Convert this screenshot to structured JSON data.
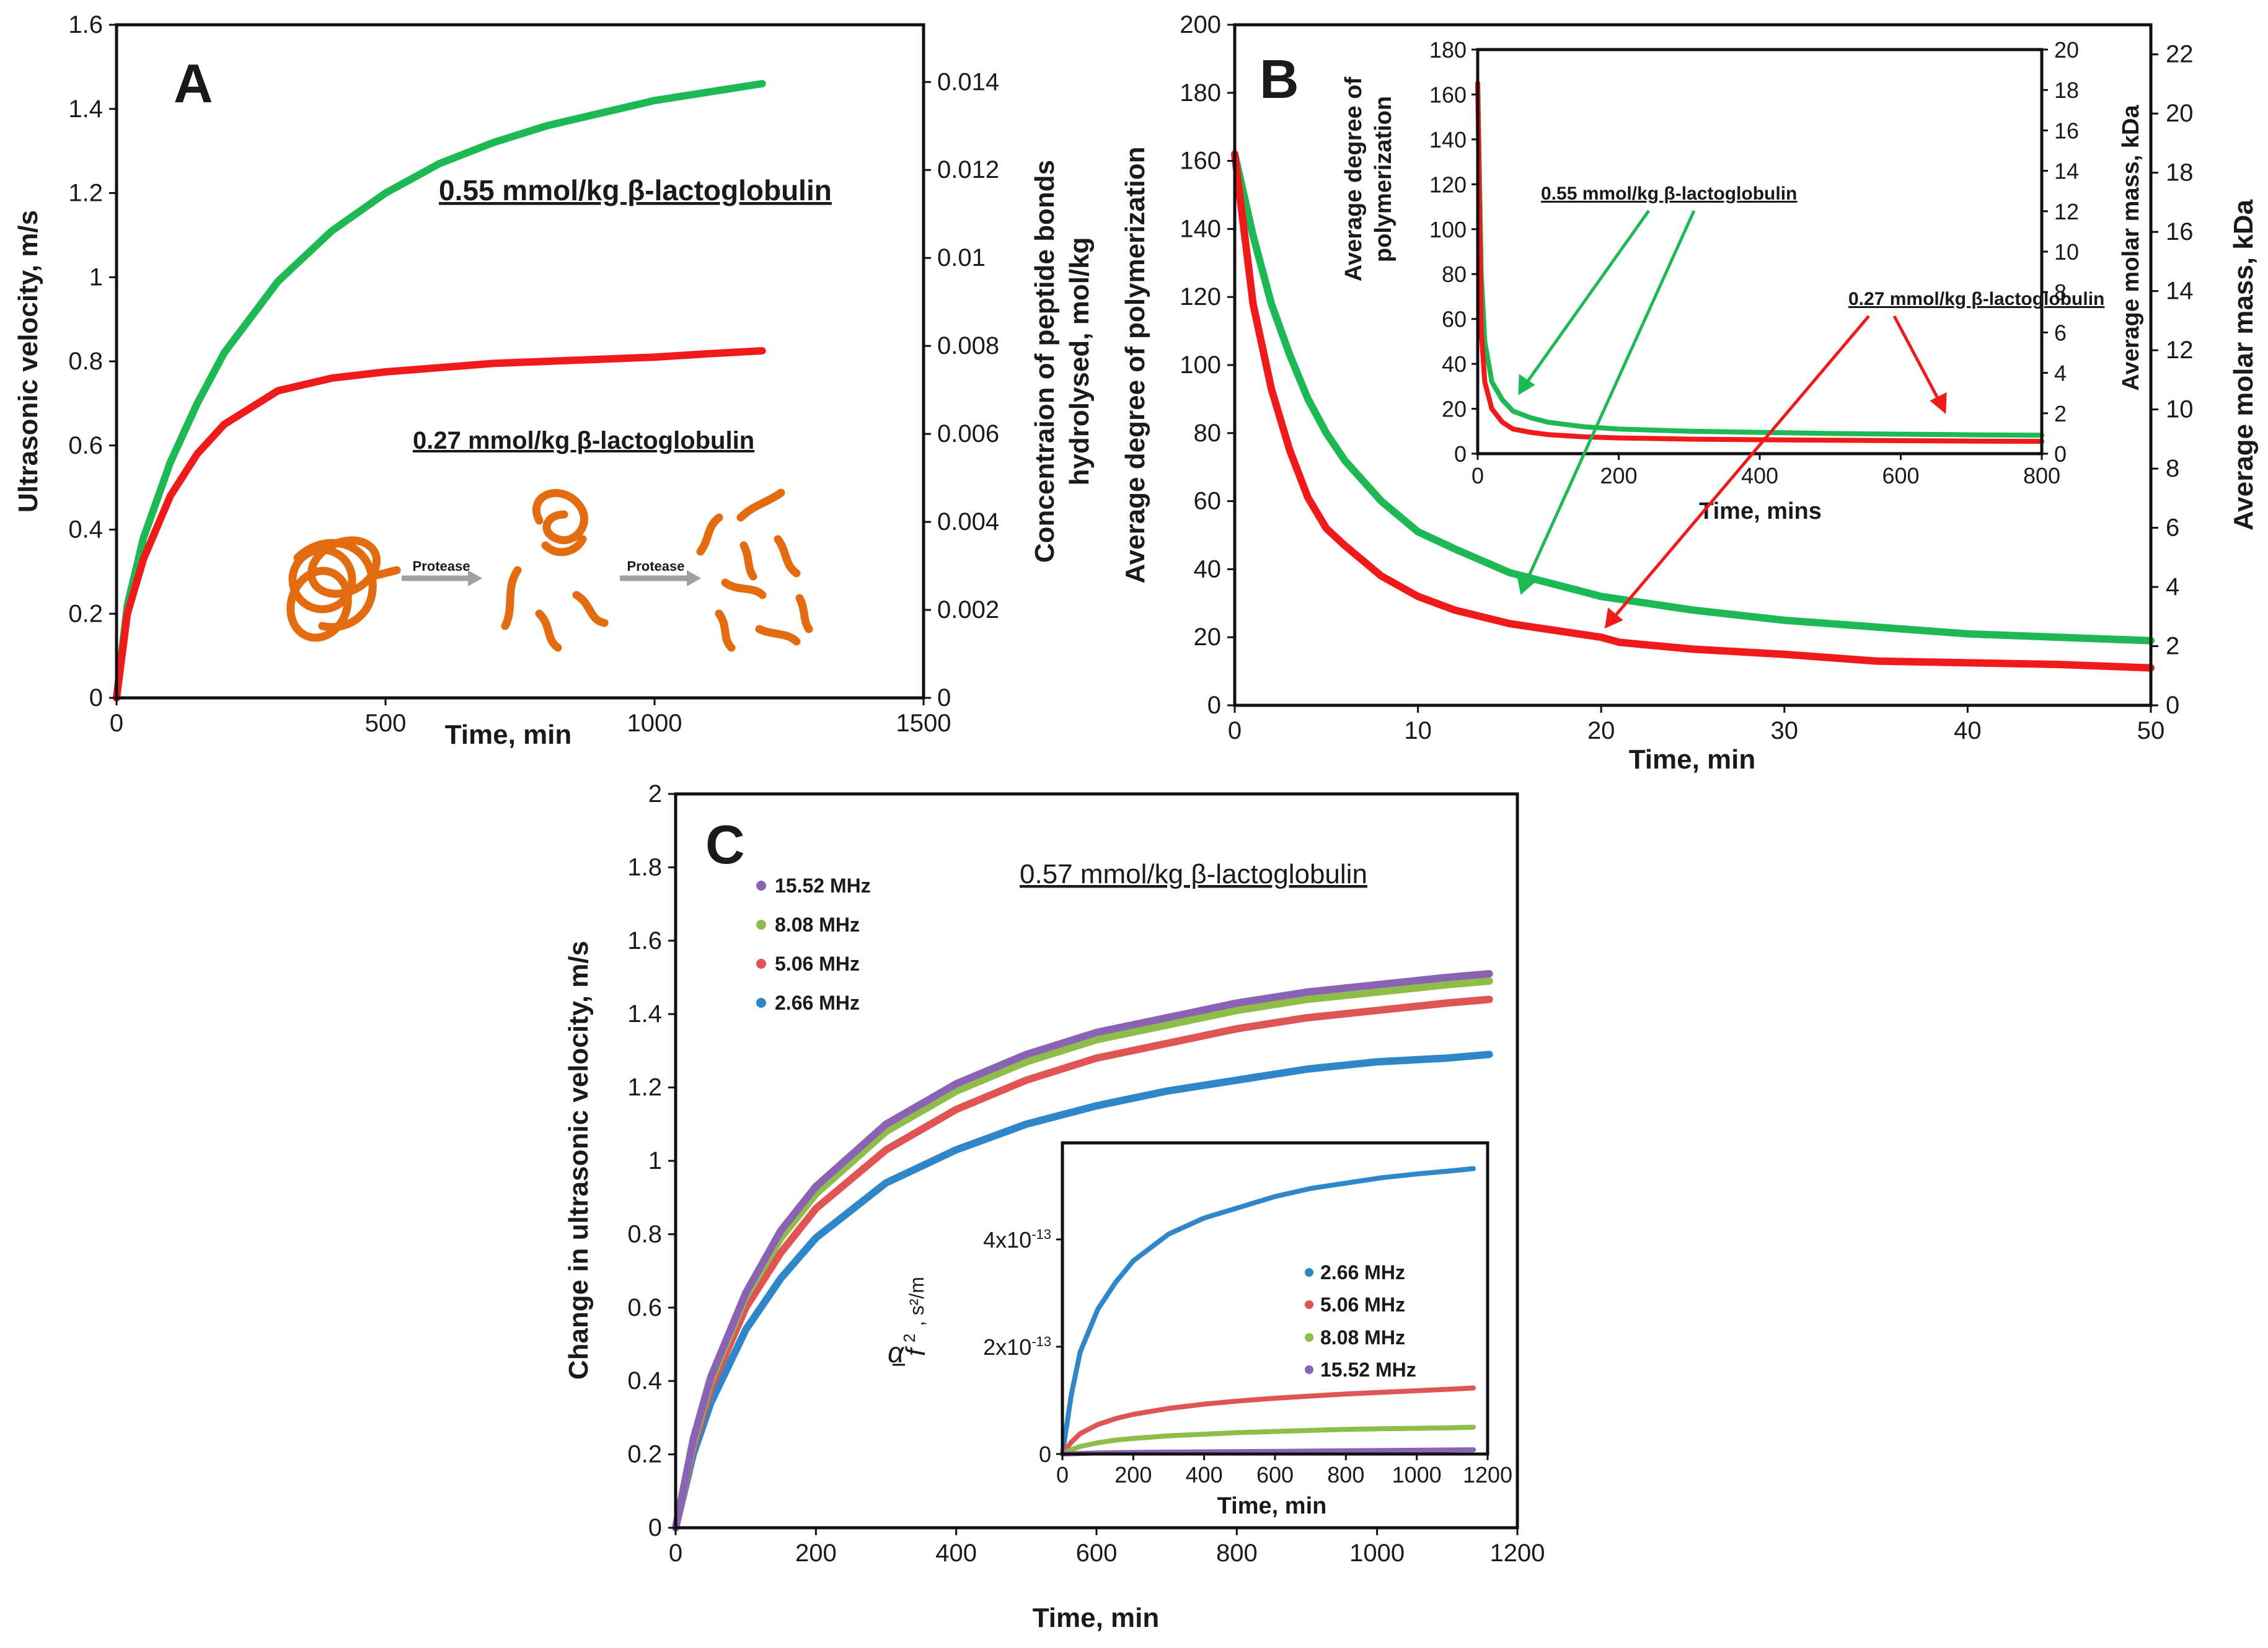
{
  "figure": {
    "panels": [
      "A",
      "B",
      "C"
    ]
  },
  "chart_data": [
    {
      "panel": "A",
      "type": "line",
      "title": "",
      "xlabel": "Time, min",
      "ylabel": "Ultrasonic velocity, m/s",
      "y2label_line1": "Concentraion of peptide bonds",
      "y2label_line2": "hydrolysed, mol/kg",
      "xlim": [
        0,
        1500
      ],
      "ylim": [
        0,
        1.6
      ],
      "y2lim": [
        0,
        0.0153
      ],
      "xticks": [
        "0",
        "500",
        "1000",
        "1500"
      ],
      "yticks": [
        "0",
        "0.2",
        "0.4",
        "0.6",
        "0.8",
        "1",
        "1.2",
        "1.4",
        "1.6"
      ],
      "y2ticks": [
        "0",
        "0.002",
        "0.004",
        "0.006",
        "0.008",
        "0.01",
        "0.012",
        "0.014"
      ],
      "series": [
        {
          "name": "0.55 mmol/kg β-lactoglobulin",
          "color": "#1db954",
          "x": [
            0,
            20,
            50,
            100,
            150,
            200,
            300,
            400,
            500,
            600,
            700,
            800,
            900,
            1000,
            1100,
            1200
          ],
          "y": [
            0,
            0.22,
            0.38,
            0.56,
            0.7,
            0.82,
            0.99,
            1.11,
            1.2,
            1.27,
            1.32,
            1.36,
            1.39,
            1.42,
            1.44,
            1.46
          ]
        },
        {
          "name": "0.27 mmol/kg β-lactoglobulin",
          "color": "#f01a1a",
          "x": [
            0,
            20,
            50,
            100,
            150,
            200,
            300,
            400,
            500,
            600,
            700,
            800,
            900,
            1000,
            1100,
            1200
          ],
          "y": [
            0,
            0.2,
            0.33,
            0.48,
            0.58,
            0.65,
            0.73,
            0.76,
            0.775,
            0.785,
            0.795,
            0.8,
            0.805,
            0.81,
            0.818,
            0.825
          ]
        }
      ],
      "annotations": [
        {
          "text": "0.55 mmol/kg β-lactoglobulin",
          "color": "#1db954"
        },
        {
          "text": "0.27 mmol/kg  β-lactoglobulin",
          "color": "#f01a1a"
        }
      ],
      "schematic": {
        "arrow_label_1": "Protease",
        "arrow_label_2": "Protease",
        "color": "#e36b10"
      }
    },
    {
      "panel": "B",
      "type": "line",
      "xlabel": "Time, min",
      "ylabel": "Average degree of polymerization",
      "y2label": "Average molar mass, kDa",
      "xlim": [
        0,
        50
      ],
      "ylim": [
        0,
        200
      ],
      "y2lim": [
        0,
        23
      ],
      "xticks": [
        "0",
        "10",
        "20",
        "30",
        "40",
        "50"
      ],
      "yticks": [
        "0",
        "20",
        "40",
        "60",
        "80",
        "100",
        "120",
        "140",
        "160",
        "180",
        "200"
      ],
      "y2ticks": [
        "0",
        "2",
        "4",
        "6",
        "8",
        "10",
        "12",
        "14",
        "16",
        "18",
        "20",
        "22"
      ],
      "series": [
        {
          "name": "0.55 mmol/kg β-lactoglobulin",
          "color": "#1db954",
          "x": [
            0,
            1,
            2,
            3,
            4,
            5,
            6,
            8,
            10,
            12,
            15,
            20,
            25,
            30,
            35,
            40,
            45,
            50
          ],
          "y": [
            162,
            138,
            118,
            103,
            90,
            80,
            72,
            60,
            51,
            46,
            39,
            32,
            28,
            25,
            23,
            21,
            20,
            19
          ]
        },
        {
          "name": "0.27 mmol/kg β-lactoglobulin",
          "color": "#f01a1a",
          "x": [
            0,
            1,
            2,
            3,
            4,
            5,
            6,
            8,
            10,
            12,
            15,
            20,
            21,
            25,
            30,
            35,
            40,
            45,
            50
          ],
          "y": [
            162,
            118,
            93,
            75,
            61,
            52,
            47,
            38,
            32,
            28,
            24,
            20,
            18.5,
            16.5,
            15,
            13,
            12.5,
            12,
            11
          ]
        }
      ],
      "inset": {
        "xlabel": "Time, mins",
        "ylabel_line1": "Average degree of",
        "ylabel_line2": "polymerization",
        "y2label": "Average molar mass, kDa",
        "xlim": [
          0,
          800
        ],
        "ylim": [
          0,
          180
        ],
        "y2lim": [
          0,
          20
        ],
        "xticks": [
          "0",
          "200",
          "400",
          "600",
          "800"
        ],
        "yticks": [
          "0",
          "20",
          "40",
          "60",
          "80",
          "100",
          "120",
          "140",
          "160",
          "180"
        ],
        "y2ticks": [
          "0",
          "2",
          "4",
          "6",
          "8",
          "10",
          "12",
          "14",
          "16",
          "18",
          "20"
        ],
        "series": [
          {
            "name": "0.55 mmol/kg β-lactoglobulin",
            "color": "#1db954",
            "x": [
              0,
              5,
              10,
              20,
              35,
              50,
              75,
              100,
              150,
              200,
              300,
              400,
              500,
              600,
              700,
              800
            ],
            "y": [
              165,
              80,
              50,
              32,
              24,
              19,
              16,
              14,
              12,
              11,
              10,
              9.5,
              9,
              8.7,
              8.4,
              8.2
            ]
          },
          {
            "name": "0.27 mmol/kg β-lactoglobulin",
            "color": "#f01a1a",
            "x": [
              0,
              5,
              10,
              20,
              35,
              50,
              75,
              100,
              150,
              200,
              300,
              400,
              500,
              600,
              700,
              800
            ],
            "y": [
              165,
              55,
              32,
              20,
              14,
              11,
              9.5,
              8.5,
              7.5,
              7,
              6.5,
              6.2,
              6,
              5.8,
              5.6,
              5.5
            ]
          }
        ],
        "annotations": [
          {
            "text": "0.55 mmol/kg β-lactoglobulin",
            "color": "#1db954"
          },
          {
            "text": "0.27 mmol/kg β-lactoglobulin",
            "color": "#f01a1a"
          }
        ]
      }
    },
    {
      "panel": "C",
      "type": "line",
      "title": "0.57 mmol/kg β-lactoglobulin",
      "xlabel": "Time, min",
      "ylabel": "Change in ultrasonic velocity, m/s",
      "xlim": [
        0,
        1200
      ],
      "ylim": [
        0,
        2
      ],
      "xticks": [
        "0",
        "200",
        "400",
        "600",
        "800",
        "1000",
        "1200"
      ],
      "yticks": [
        "0",
        "0.2",
        "0.4",
        "0.6",
        "0.8",
        "1",
        "1.2",
        "1.4",
        "1.6",
        "1.8",
        "2"
      ],
      "series": [
        {
          "name": "15.52 MHz",
          "color": "#8a63b5",
          "x": [
            0,
            25,
            50,
            100,
            150,
            200,
            300,
            400,
            500,
            600,
            700,
            800,
            900,
            1000,
            1100,
            1160
          ],
          "y": [
            0,
            0.24,
            0.41,
            0.64,
            0.81,
            0.93,
            1.1,
            1.21,
            1.29,
            1.35,
            1.39,
            1.43,
            1.46,
            1.48,
            1.5,
            1.51
          ]
        },
        {
          "name": "8.08 MHz",
          "color": "#8fbd4a",
          "x": [
            0,
            25,
            50,
            100,
            150,
            200,
            300,
            400,
            500,
            600,
            700,
            800,
            900,
            1000,
            1100,
            1160
          ],
          "y": [
            0,
            0.23,
            0.4,
            0.63,
            0.79,
            0.91,
            1.08,
            1.19,
            1.27,
            1.33,
            1.37,
            1.41,
            1.44,
            1.46,
            1.48,
            1.49
          ]
        },
        {
          "name": "5.06 MHz",
          "color": "#e05454",
          "x": [
            0,
            25,
            50,
            100,
            150,
            200,
            300,
            400,
            500,
            600,
            700,
            800,
            900,
            1000,
            1100,
            1160
          ],
          "y": [
            0,
            0.22,
            0.38,
            0.6,
            0.75,
            0.87,
            1.03,
            1.14,
            1.22,
            1.28,
            1.32,
            1.36,
            1.39,
            1.41,
            1.43,
            1.44
          ]
        },
        {
          "name": "2.66 MHz",
          "color": "#2f86c8",
          "x": [
            0,
            25,
            50,
            100,
            150,
            200,
            300,
            400,
            500,
            600,
            700,
            800,
            900,
            1000,
            1100,
            1160
          ],
          "y": [
            0,
            0.2,
            0.34,
            0.54,
            0.68,
            0.79,
            0.94,
            1.03,
            1.1,
            1.15,
            1.19,
            1.22,
            1.25,
            1.27,
            1.28,
            1.29
          ]
        }
      ],
      "inset": {
        "xlabel": "Time, min",
        "ylabel_units": ", s²/m",
        "ylabel_alpha": "α",
        "ylabel_f": "f",
        "ylabel_sq": "2",
        "xlim": [
          0,
          1200
        ],
        "ylim": [
          0,
          5.8e-13
        ],
        "xticks": [
          "0",
          "200",
          "400",
          "600",
          "800",
          "1000",
          "1200"
        ],
        "yticks": [
          "0",
          "2x10",
          "4x10"
        ],
        "ytick_exp": "-13",
        "series": [
          {
            "name": "2.66 MHz",
            "color": "#2f86c8",
            "x": [
              0,
              25,
              50,
              100,
              150,
              200,
              300,
              400,
              500,
              600,
              700,
              800,
              900,
              1000,
              1100,
              1160
            ],
            "y": [
              0,
              1.1e-13,
              1.9e-13,
              2.7e-13,
              3.2e-13,
              3.6e-13,
              4.1e-13,
              4.4e-13,
              4.6e-13,
              4.8e-13,
              4.95e-13,
              5.05e-13,
              5.15e-13,
              5.22e-13,
              5.28e-13,
              5.32e-13
            ]
          },
          {
            "name": "5.06 MHz",
            "color": "#e05454",
            "x": [
              0,
              25,
              50,
              100,
              150,
              200,
              300,
              400,
              500,
              600,
              700,
              800,
              900,
              1000,
              1100,
              1160
            ],
            "y": [
              0,
              2.2e-14,
              3.8e-14,
              5.5e-14,
              6.6e-14,
              7.4e-14,
              8.5e-14,
              9.3e-14,
              9.9e-14,
              1.04e-13,
              1.08e-13,
              1.12e-13,
              1.15e-13,
              1.18e-13,
              1.21e-13,
              1.23e-13
            ]
          },
          {
            "name": "8.08 MHz",
            "color": "#8fbd4a",
            "x": [
              0,
              25,
              50,
              100,
              150,
              200,
              300,
              400,
              500,
              600,
              700,
              800,
              900,
              1000,
              1100,
              1160
            ],
            "y": [
              0,
              8e-15,
              1.4e-14,
              2.1e-14,
              2.6e-14,
              2.9e-14,
              3.4e-14,
              3.7e-14,
              4e-14,
              4.2e-14,
              4.4e-14,
              4.6e-14,
              4.7e-14,
              4.8e-14,
              4.9e-14,
              5e-14
            ]
          },
          {
            "name": "15.52 MHz",
            "color": "#8a63b5",
            "x": [
              0,
              100,
              200,
              400,
              600,
              800,
              1000,
              1160
            ],
            "y": [
              0,
              2e-15,
              3e-15,
              4e-15,
              5e-15,
              6e-15,
              7e-15,
              8e-15
            ]
          }
        ]
      }
    }
  ]
}
